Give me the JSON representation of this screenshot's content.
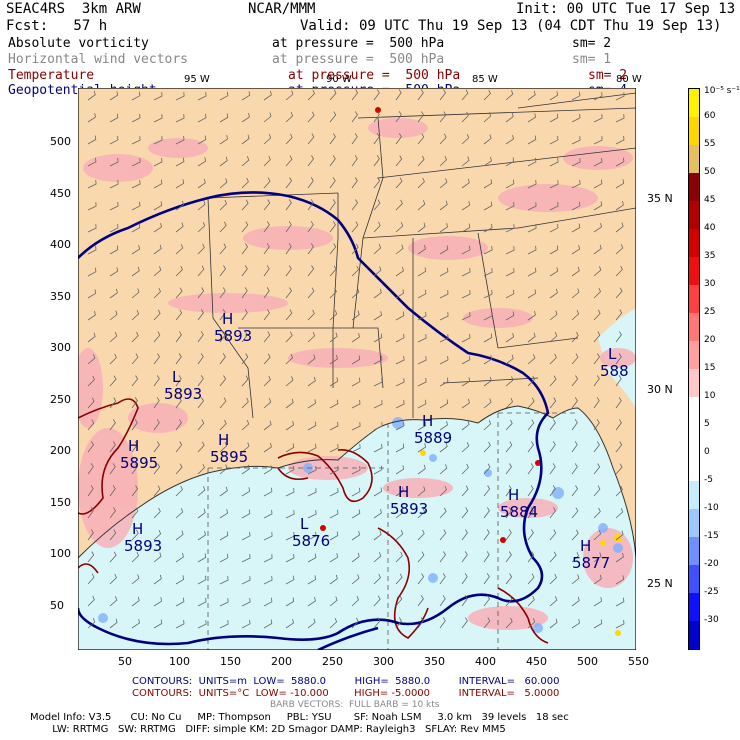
{
  "header": {
    "line1_left": "SEAC4RS  3km ARW",
    "line1_center": "NCAR/MMM",
    "line1_right": "Init: 00 UTC Tue 17 Sep 13",
    "line2_left": "Fcst:   57 h",
    "line2_right": "Valid: 09 UTC Thu 19 Sep 13 (04 CDT Thu 19 Sep 13)"
  },
  "fields": [
    {
      "name": "Absolute vorticity",
      "level": "at pressure =  500 hPa",
      "sm": "sm= 2",
      "color": "#000000"
    },
    {
      "name": "Horizontal wind vectors",
      "level": "at pressure =  500 hPa",
      "sm": "sm= 1",
      "color": "#888888"
    },
    {
      "name": "Temperature",
      "level": "at pressure =  500 hPa",
      "sm": "sm= 2",
      "color": "#8b0000"
    },
    {
      "name": "Geopotential height",
      "level": "at pressure =  500 hPa",
      "sm": "sm= 4",
      "color": "#000080"
    }
  ],
  "colorbar": {
    "top_label": "10⁻⁵ s⁻¹",
    "ticks": [
      "60",
      "55",
      "50",
      "45",
      "40",
      "35",
      "30",
      "25",
      "20",
      "15",
      "10",
      "5",
      "0",
      "-5",
      "-10",
      "-15",
      "-20",
      "-25",
      "-30"
    ],
    "colors": [
      "#fff200",
      "#ffd700",
      "#e6c060",
      "#8b0000",
      "#b00000",
      "#d40000",
      "#ee1010",
      "#ff4040",
      "#ff7777",
      "#ff9f9f",
      "#ffc8c8",
      "#ffffff",
      "#ffffff",
      "#ffffff",
      "#c8ecff",
      "#9cc8ff",
      "#6f8fff",
      "#4050ff",
      "#1010ff",
      "#0000cc"
    ]
  },
  "map_labels": {
    "lon_top": [
      "95 W",
      "90 W",
      "85 W",
      "80 W"
    ],
    "lat_right": [
      "35 N",
      "30 N",
      "25 N"
    ],
    "y_axis": [
      "500",
      "450",
      "400",
      "350",
      "300",
      "250",
      "200",
      "150",
      "100",
      "50"
    ],
    "x_axis": [
      "50",
      "100",
      "150",
      "200",
      "250",
      "300",
      "350",
      "400",
      "450",
      "500",
      "550"
    ],
    "height_centers": [
      {
        "type": "H",
        "value": "5893"
      },
      {
        "type": "L",
        "value": "5893"
      },
      {
        "type": "H",
        "value": "5895"
      },
      {
        "type": "H",
        "value": "5893"
      },
      {
        "type": "L",
        "value": "5876"
      },
      {
        "type": "H",
        "value": "5893"
      },
      {
        "type": "H",
        "value": "5889"
      },
      {
        "type": "H",
        "value": "5884"
      },
      {
        "type": "H",
        "value": "5877"
      },
      {
        "type": "L",
        "value": "588"
      },
      {
        "type": "H",
        "value": "5895"
      }
    ]
  },
  "footer": {
    "contours1": "CONTOURS:  UNITS=m  LOW=  5880.0         HIGH=  5880.0         INTERVAL=   60.000",
    "contours2": "CONTOURS:  UNITS=°C  LOW= -10.000        HIGH= -5.0000         INTERVAL=   5.0000",
    "barbs": "BARB VECTORS:  FULL BARB = 10 kts",
    "model1": "Model Info: V3.5      CU: No Cu     MP: Thompson     PBL: YSU       SF: Noah LSM     3.0 km   39 levels   18 sec",
    "model2": "       LW: RRTMG   SW: RRTMG   DIFF: simple KM: 2D Smagor DAMP: Rayleigh3   SFLAY: Rev MM5"
  }
}
